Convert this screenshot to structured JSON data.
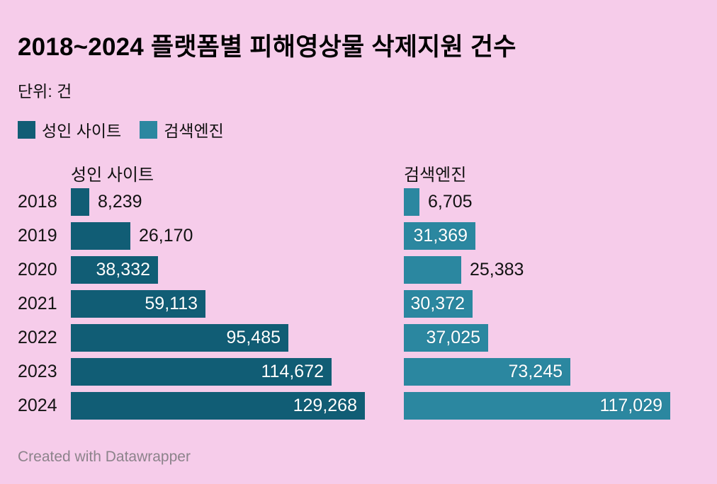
{
  "title": "2018~2024 플랫폼별 피해영상물 삭제지원 건수",
  "subtitle": "단위: 건",
  "footer": {
    "text": "Created with Datawrapper"
  },
  "colors": {
    "background": "#f6ccea",
    "series_adult_sites": "#115d75",
    "series_search_engines": "#2b87a0",
    "text": "#111111",
    "inside_label": "#ffffff",
    "footer_text": "#8c838b"
  },
  "chart_data": {
    "type": "bar",
    "orientation": "horizontal",
    "layout": "split-columns",
    "unit": "건",
    "categories": [
      "2018",
      "2019",
      "2020",
      "2021",
      "2022",
      "2023",
      "2024"
    ],
    "xlim": [
      0,
      129268
    ],
    "grid": false,
    "legend_position": "top-left",
    "series": [
      {
        "name": "성인 사이트",
        "color": "#115d75",
        "values": [
          8239,
          26170,
          38332,
          59113,
          95485,
          114672,
          129268
        ],
        "label_position": [
          "outside",
          "outside",
          "inside",
          "inside",
          "inside",
          "inside",
          "inside"
        ]
      },
      {
        "name": "검색엔진",
        "color": "#2b87a0",
        "values": [
          6705,
          31369,
          25383,
          30372,
          37025,
          73245,
          117029
        ],
        "label_position": [
          "outside",
          "inside",
          "outside",
          "inside",
          "inside",
          "inside",
          "inside"
        ]
      }
    ]
  }
}
